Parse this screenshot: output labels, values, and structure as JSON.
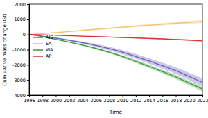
{
  "chart_data": {
    "type": "line",
    "x_label": "Time",
    "y_label": "Cumulative mass change (Gt)",
    "x": [
      1996,
      1998,
      2000,
      2002,
      2004,
      2006,
      2008,
      2010,
      2012,
      2014,
      2016,
      2018,
      2020,
      2022
    ],
    "series": [
      {
        "name": "AIS",
        "color": "#6a5fb8",
        "values": [
          0,
          -110,
          -240,
          -380,
          -540,
          -720,
          -930,
          -1170,
          -1450,
          -1750,
          -2060,
          -2390,
          -2770,
          -3160
        ],
        "errors": [
          0,
          20,
          40,
          60,
          80,
          100,
          120,
          140,
          160,
          180,
          200,
          220,
          240,
          260
        ]
      },
      {
        "name": "EA",
        "color": "#f2c46a",
        "values": [
          0,
          60,
          130,
          200,
          270,
          340,
          410,
          480,
          550,
          610,
          680,
          740,
          800,
          860
        ],
        "errors": [
          0,
          8,
          16,
          24,
          32,
          40,
          48,
          56,
          64,
          72,
          80,
          88,
          96,
          104
        ]
      },
      {
        "name": "WA",
        "color": "#3a9a3a",
        "values": [
          0,
          -150,
          -320,
          -500,
          -700,
          -920,
          -1170,
          -1450,
          -1770,
          -2100,
          -2450,
          -2800,
          -3200,
          -3600
        ],
        "errors": [
          0,
          12,
          24,
          36,
          48,
          60,
          72,
          84,
          96,
          108,
          120,
          132,
          144,
          156
        ]
      },
      {
        "name": "AP",
        "color": "#e0302f",
        "values": [
          0,
          -20,
          -50,
          -80,
          -110,
          -140,
          -170,
          -200,
          -230,
          -260,
          -290,
          -330,
          -370,
          -420
        ],
        "errors": [
          0,
          4,
          8,
          12,
          16,
          20,
          24,
          28,
          32,
          36,
          40,
          44,
          48,
          52
        ]
      }
    ],
    "xlim": [
      1996,
      2022
    ],
    "xticks": [
      1996,
      1998,
      2000,
      2002,
      2004,
      2006,
      2008,
      2010,
      2012,
      2014,
      2016,
      2018,
      2020,
      2022
    ],
    "ylim": [
      -4000,
      2000
    ],
    "yticks": [
      -4000,
      -3000,
      -2000,
      -1000,
      0,
      1000,
      2000
    ],
    "legend": "left",
    "grid": false
  }
}
